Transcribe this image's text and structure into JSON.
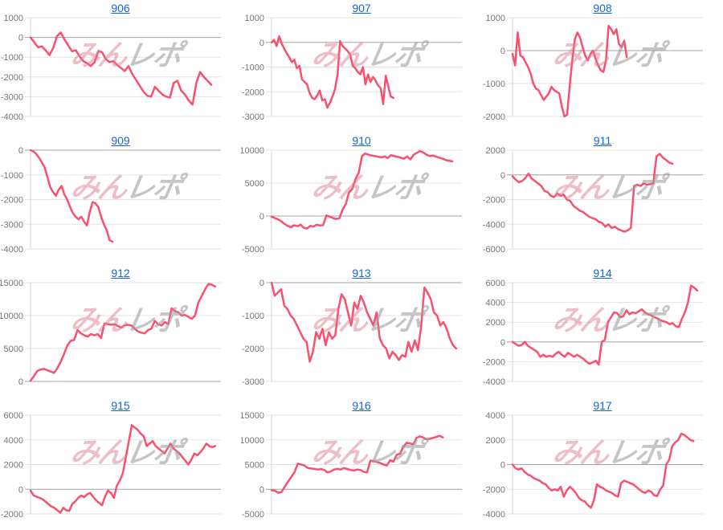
{
  "page": {
    "background": "#ffffff"
  },
  "style": {
    "line_color": "#f8506e",
    "grid_color": "#e3e3e3",
    "zero_line_color": "#a3a3a3",
    "axis_line_color": "#d9d9d9",
    "axis_label_color": "#757575",
    "title_link_color": "#1565d8"
  },
  "watermark": {
    "pink_text": "みん",
    "gray_text": "レポ",
    "pink_color": "rgba(222,125,143,0.50)",
    "gray_color": "rgba(158,158,158,0.60)"
  },
  "chart_data": [
    {
      "type": "line",
      "title": "906",
      "xlabel": "",
      "ylabel": "",
      "yticks": [
        1000,
        0,
        -1000,
        -2000,
        -3000,
        -4000
      ],
      "ylim": [
        -4000,
        1000
      ],
      "width_frac": 0.95,
      "values": [
        0,
        -250,
        -500,
        -450,
        -650,
        -900,
        -550,
        50,
        250,
        -100,
        -400,
        -700,
        -650,
        -950,
        -1200,
        -1300,
        -1450,
        -1250,
        -700,
        -750,
        -1100,
        -1250,
        -1200,
        -1400,
        -1550,
        -1700,
        -1450,
        -1850,
        -2150,
        -2450,
        -2750,
        -2950,
        -3000,
        -2500,
        -2700,
        -2900,
        -3000,
        -3050,
        -2300,
        -2200,
        -2700,
        -2900,
        -3200,
        -3400,
        -2300,
        -1750,
        -2000,
        -2200,
        -2400
      ]
    },
    {
      "type": "line",
      "title": "907",
      "xlabel": "",
      "ylabel": "",
      "yticks": [
        1000,
        0,
        -1000,
        -2000,
        -3000
      ],
      "ylim": [
        -3000,
        1000
      ],
      "width_frac": 0.64,
      "values": [
        0,
        100,
        -150,
        250,
        -50,
        -250,
        -450,
        -600,
        -800,
        -700,
        -1050,
        -950,
        -1500,
        -1600,
        -1700,
        -2050,
        -2250,
        -2300,
        -2150,
        -1950,
        -2350,
        -2300,
        -2650,
        -2450,
        -2200,
        -1900,
        -1300,
        50,
        -150,
        -250,
        -350,
        -500,
        -950,
        -1050,
        -1200,
        -1300,
        -1000,
        -1700,
        -1300,
        -1600,
        -1400,
        -1550,
        -1750,
        -1850,
        -2500,
        -1350,
        -1800,
        -2200,
        -2250
      ]
    },
    {
      "type": "line",
      "title": "908",
      "xlabel": "",
      "ylabel": "",
      "yticks": [
        1000,
        0,
        -1000,
        -2000
      ],
      "ylim": [
        -2000,
        1000
      ],
      "width_frac": 0.6,
      "values": [
        -100,
        -450,
        550,
        -150,
        -200,
        -350,
        -500,
        -700,
        -1000,
        -1150,
        -1200,
        -1350,
        -1500,
        -1400,
        -1300,
        -1100,
        -1200,
        -1250,
        -1300,
        -1700,
        -2000,
        -1950,
        -1100,
        -300,
        350,
        550,
        400,
        100,
        -150,
        -300,
        -100,
        0,
        -250,
        -450,
        -600,
        -650,
        -300,
        750,
        650,
        500,
        650,
        200,
        100,
        300,
        -200
      ]
    },
    {
      "type": "line",
      "title": "909",
      "xlabel": "",
      "ylabel": "",
      "yticks": [
        0,
        -1000,
        -2000,
        -3000,
        -4000
      ],
      "ylim": [
        -4000,
        0
      ],
      "width_frac": 0.43,
      "values": [
        0,
        -50,
        -150,
        -300,
        -500,
        -700,
        -1100,
        -1500,
        -1700,
        -1850,
        -1600,
        -1450,
        -1800,
        -2000,
        -2300,
        -2550,
        -2700,
        -2800,
        -2700,
        -2900,
        -3050,
        -2500,
        -2100,
        -2150,
        -2300,
        -2700,
        -3000,
        -3250,
        -3650,
        -3700
      ]
    },
    {
      "type": "line",
      "title": "910",
      "xlabel": "",
      "ylabel": "",
      "yticks": [
        10000,
        5000,
        0,
        -5000
      ],
      "ylim": [
        -5000,
        10000
      ],
      "width_frac": 0.95,
      "values": [
        -100,
        -300,
        -500,
        -800,
        -1200,
        -1500,
        -1700,
        -1400,
        -1550,
        -1300,
        -1800,
        -1900,
        -1500,
        -1600,
        -1300,
        -1450,
        -1350,
        100,
        -100,
        -300,
        -450,
        -350,
        1000,
        1800,
        3600,
        4100,
        5600,
        6600,
        9100,
        9500,
        9300,
        9200,
        9100,
        9000,
        8900,
        9050,
        8800,
        9250,
        9100,
        9000,
        8850,
        8700,
        9050,
        8600,
        9300,
        9600,
        9850,
        9650,
        9300,
        9100,
        9200,
        9000,
        8850,
        8700,
        8500,
        8400,
        8300
      ]
    },
    {
      "type": "line",
      "title": "911",
      "xlabel": "",
      "ylabel": "",
      "yticks": [
        2000,
        0,
        -2000,
        -4000,
        -6000
      ],
      "ylim": [
        -6000,
        2000
      ],
      "width_frac": 0.84,
      "values": [
        -100,
        -400,
        -600,
        -500,
        -250,
        100,
        -300,
        -500,
        -700,
        -900,
        -1300,
        -1400,
        -1700,
        -1800,
        -1500,
        -1700,
        -1600,
        -2000,
        -2100,
        -2500,
        -2700,
        -2900,
        -3000,
        -3200,
        -3400,
        -3500,
        -3600,
        -3800,
        -3900,
        -4200,
        -4000,
        -4300,
        -4200,
        -4400,
        -4500,
        -4600,
        -4500,
        -4300,
        -900,
        -800,
        -900,
        -700,
        -800,
        -750,
        -700,
        1500,
        1700,
        1400,
        1200,
        1000,
        900
      ]
    },
    {
      "type": "line",
      "title": "912",
      "xlabel": "",
      "ylabel": "",
      "yticks": [
        15000,
        10000,
        5000,
        0
      ],
      "ylim": [
        0,
        15000
      ],
      "width_frac": 0.97,
      "values": [
        100,
        800,
        1600,
        1800,
        1900,
        1700,
        1500,
        1300,
        2000,
        3000,
        4200,
        5500,
        6200,
        6300,
        7800,
        7300,
        7000,
        6800,
        7200,
        7000,
        7200,
        6600,
        8800,
        8700,
        8600,
        8700,
        8400,
        8200,
        8500,
        8600,
        8500,
        8000,
        7600,
        7400,
        7300,
        7800,
        8000,
        9200,
        8700,
        8500,
        9000,
        8700,
        11100,
        10700,
        10500,
        10000,
        10100,
        9800,
        9500,
        10000,
        12000,
        13000,
        14000,
        14800,
        14700,
        14400
      ]
    },
    {
      "type": "line",
      "title": "913",
      "xlabel": "",
      "ylabel": "",
      "yticks": [
        0,
        -1000,
        -2000,
        -3000
      ],
      "ylim": [
        -3000,
        0
      ],
      "width_frac": 0.97,
      "values": [
        0,
        -400,
        -300,
        -200,
        -700,
        -800,
        -1000,
        -1100,
        -1300,
        -1500,
        -1700,
        -1800,
        -2400,
        -2100,
        -1500,
        -1700,
        -1400,
        -1900,
        -1500,
        -1700,
        -1600,
        -800,
        -350,
        -500,
        -900,
        -1300,
        -600,
        -800,
        -400,
        -600,
        -900,
        -1100,
        -1300,
        -900,
        -1700,
        -1900,
        -2000,
        -2300,
        -2100,
        -2200,
        -2350,
        -2200,
        -2250,
        -1800,
        -2100,
        -1750,
        -2050,
        -1300,
        -150,
        -300,
        -500,
        -900,
        -1000,
        -1300,
        -1200,
        -1400,
        -1700,
        -1900,
        -2000
      ]
    },
    {
      "type": "line",
      "title": "914",
      "xlabel": "",
      "ylabel": "",
      "yticks": [
        6000,
        4000,
        2000,
        0,
        -2000,
        -4000
      ],
      "ylim": [
        -4000,
        6000
      ],
      "width_frac": 0.97,
      "values": [
        0,
        -200,
        -400,
        -300,
        0,
        -400,
        -600,
        -800,
        -1000,
        -1500,
        -1300,
        -1500,
        -1400,
        -1500,
        -1200,
        -1000,
        -1300,
        -1500,
        -1100,
        -1300,
        -1500,
        -1300,
        -1500,
        -1700,
        -2000,
        -2200,
        -2100,
        -1900,
        -2300,
        0,
        200,
        2000,
        2500,
        3000,
        2900,
        2500,
        2600,
        3200,
        2800,
        3000,
        2900,
        3100,
        3300,
        3000,
        2800,
        2700,
        2500,
        2400,
        2200,
        2100,
        2000,
        1800,
        1900,
        1600,
        1500,
        2300,
        3000,
        4000,
        5700,
        5500,
        5200
      ]
    },
    {
      "type": "line",
      "title": "915",
      "xlabel": "",
      "ylabel": "",
      "yticks": [
        6000,
        4000,
        2000,
        0,
        -2000
      ],
      "ylim": [
        -2000,
        6000
      ],
      "width_frac": 0.97,
      "values": [
        -100,
        -500,
        -600,
        -700,
        -800,
        -1000,
        -1200,
        -1400,
        -1500,
        -1700,
        -1900,
        -1500,
        -1700,
        -1750,
        -1200,
        -1000,
        -700,
        -500,
        -650,
        -400,
        -300,
        -600,
        -900,
        -1100,
        -1300,
        -600,
        -100,
        -300,
        -700,
        300,
        700,
        1300,
        2600,
        3900,
        5200,
        5000,
        4800,
        4500,
        4300,
        3500,
        3700,
        3900,
        3500,
        3300,
        3100,
        2900,
        3300,
        3700,
        3300,
        3100,
        2900,
        2600,
        2300,
        2000,
        2400,
        2900,
        2750,
        3000,
        3300,
        3700,
        3500,
        3400,
        3500
      ]
    },
    {
      "type": "line",
      "title": "916",
      "xlabel": "",
      "ylabel": "",
      "yticks": [
        15000,
        10000,
        5000,
        0,
        -5000
      ],
      "ylim": [
        -5000,
        15000
      ],
      "width_frac": 0.9,
      "values": [
        -200,
        -300,
        -700,
        -600,
        500,
        1500,
        2500,
        3500,
        5200,
        5000,
        4800,
        4300,
        4200,
        4100,
        4000,
        4100,
        3900,
        3400,
        3600,
        4000,
        4100,
        4000,
        4300,
        4100,
        3900,
        3800,
        4000,
        3900,
        3500,
        3400,
        5800,
        5700,
        5500,
        5300,
        5000,
        4800,
        5900,
        5600,
        7000,
        7200,
        8600,
        9400,
        9300,
        9100,
        10400,
        10700,
        10500,
        10100,
        10200,
        10400,
        10600,
        10800,
        10500
      ]
    },
    {
      "type": "line",
      "title": "917",
      "xlabel": "",
      "ylabel": "",
      "yticks": [
        4000,
        2000,
        0,
        -2000,
        -4000
      ],
      "ylim": [
        -4000,
        4000
      ],
      "width_frac": 0.95,
      "values": [
        0,
        -300,
        -400,
        -300,
        -600,
        -800,
        -900,
        -1100,
        -1200,
        -1300,
        -1500,
        -1600,
        -1900,
        -2100,
        -2000,
        -2100,
        -1800,
        -2600,
        -2100,
        -1800,
        -2000,
        -2300,
        -2700,
        -2900,
        -3000,
        -3300,
        -3500,
        -2900,
        -1600,
        -1800,
        -1900,
        -2100,
        -2200,
        -2300,
        -2500,
        -2600,
        -1500,
        -1300,
        -1400,
        -1500,
        -1600,
        -1800,
        -2000,
        -2200,
        -2300,
        -2100,
        -2200,
        -2500,
        -2550,
        -2000,
        -1700,
        0,
        400,
        1500,
        1800,
        2000,
        2500,
        2400,
        2200,
        2000,
        1900
      ]
    }
  ]
}
